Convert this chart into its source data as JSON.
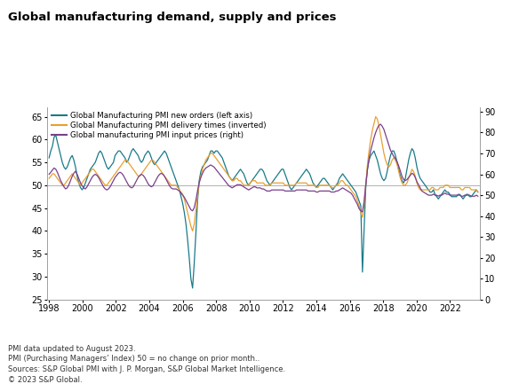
{
  "title": "Global manufacturing demand, supply and prices",
  "legend_labels": [
    "Global Manufacturing PMI new orders (left axis)",
    "Global Manufacturing PMI delivery times (inverted)",
    "Global manufacturing PMI input prices (right)"
  ],
  "line_colors": [
    "#1a7a8a",
    "#e8a030",
    "#7b3f8c"
  ],
  "ylim_left": [
    25,
    67
  ],
  "ylim_right": [
    0,
    92
  ],
  "yticks_left": [
    25,
    30,
    35,
    40,
    45,
    50,
    55,
    60,
    65
  ],
  "yticks_right": [
    0,
    10,
    20,
    30,
    40,
    50,
    60,
    70,
    80,
    90
  ],
  "footnotes": [
    "PMI data updated to August 2023.",
    "PMI (Purchasing Managers’ Index) 50 = no change on prior month..",
    "Sources: S&P Global PMI with J. P. Morgan, S&P Global Market Intelligence.",
    "© 2023 S&P Global."
  ],
  "background_color": "#ffffff",
  "new_orders": [
    56.0,
    57.5,
    58.5,
    60.5,
    61.0,
    59.5,
    58.0,
    56.5,
    55.0,
    54.0,
    53.5,
    54.0,
    55.0,
    56.0,
    56.5,
    55.5,
    54.0,
    52.0,
    50.5,
    49.5,
    49.0,
    49.5,
    50.5,
    51.5,
    52.5,
    53.5,
    54.0,
    54.5,
    55.0,
    56.0,
    57.0,
    57.5,
    57.0,
    56.0,
    55.0,
    54.0,
    53.5,
    54.0,
    54.5,
    55.0,
    56.5,
    57.0,
    57.5,
    57.5,
    57.0,
    56.5,
    56.0,
    55.0,
    55.5,
    56.5,
    57.5,
    58.0,
    57.5,
    57.0,
    56.5,
    55.5,
    55.0,
    55.5,
    56.5,
    57.0,
    57.5,
    57.0,
    56.0,
    55.0,
    54.5,
    55.0,
    55.5,
    56.0,
    56.5,
    57.0,
    57.5,
    57.0,
    56.0,
    55.0,
    54.0,
    53.0,
    52.0,
    51.0,
    50.0,
    49.0,
    47.5,
    46.0,
    44.0,
    41.5,
    38.0,
    34.0,
    29.5,
    27.5,
    33.0,
    39.5,
    46.5,
    51.0,
    53.0,
    54.0,
    54.5,
    55.0,
    55.5,
    56.5,
    57.5,
    57.5,
    57.0,
    57.5,
    57.5,
    57.0,
    56.5,
    56.0,
    55.0,
    54.0,
    53.0,
    52.0,
    51.5,
    51.0,
    51.5,
    52.0,
    52.5,
    53.0,
    53.5,
    53.0,
    52.5,
    51.5,
    50.5,
    50.0,
    50.5,
    51.0,
    51.5,
    52.0,
    52.5,
    53.0,
    53.5,
    53.5,
    53.0,
    52.0,
    51.0,
    50.5,
    50.0,
    50.5,
    51.0,
    51.5,
    52.0,
    52.5,
    53.0,
    53.5,
    53.5,
    52.5,
    51.5,
    50.5,
    49.5,
    49.0,
    49.5,
    50.0,
    50.5,
    51.0,
    51.5,
    52.0,
    52.5,
    53.0,
    53.5,
    53.0,
    52.5,
    51.5,
    50.5,
    50.0,
    49.5,
    50.0,
    50.5,
    51.0,
    51.5,
    51.5,
    51.0,
    50.5,
    50.0,
    49.5,
    49.0,
    49.5,
    50.0,
    50.5,
    51.5,
    52.0,
    52.5,
    52.0,
    51.5,
    51.0,
    50.5,
    50.0,
    49.5,
    49.0,
    48.5,
    47.5,
    46.5,
    45.5,
    31.0,
    40.5,
    49.5,
    53.5,
    55.5,
    56.5,
    57.0,
    57.5,
    56.5,
    55.5,
    54.0,
    52.5,
    51.5,
    51.0,
    51.5,
    53.0,
    55.0,
    56.5,
    57.5,
    57.5,
    56.5,
    55.0,
    53.5,
    52.0,
    51.0,
    50.5,
    51.5,
    53.5,
    55.5,
    57.0,
    58.0,
    57.5,
    56.0,
    54.0,
    52.5,
    51.5,
    51.0,
    50.5,
    50.0,
    49.5,
    49.0,
    48.5,
    48.5,
    49.0,
    48.0,
    47.5,
    47.0,
    47.5,
    48.0,
    48.5,
    49.0,
    48.5,
    48.5,
    48.0,
    47.5,
    47.5,
    47.5,
    47.5,
    48.0,
    48.0,
    47.5,
    47.0,
    47.5,
    48.0,
    48.0,
    47.5,
    47.5,
    48.0,
    48.5,
    49.0,
    48.5
  ],
  "delivery_times": [
    51.5,
    52.0,
    52.5,
    52.5,
    52.0,
    51.5,
    51.0,
    50.5,
    50.0,
    50.0,
    50.5,
    51.0,
    51.5,
    52.0,
    52.5,
    52.0,
    51.5,
    51.0,
    50.5,
    50.0,
    50.5,
    51.0,
    51.5,
    52.0,
    52.5,
    53.0,
    53.5,
    53.5,
    53.0,
    52.5,
    52.0,
    51.5,
    51.0,
    50.5,
    50.0,
    50.0,
    50.5,
    51.0,
    51.5,
    52.0,
    52.5,
    53.0,
    53.5,
    54.0,
    54.5,
    55.0,
    55.5,
    55.5,
    55.0,
    54.5,
    54.0,
    53.5,
    53.0,
    52.5,
    52.0,
    52.0,
    52.5,
    53.0,
    53.5,
    54.0,
    54.5,
    55.0,
    55.5,
    55.5,
    55.0,
    54.5,
    54.0,
    53.5,
    53.0,
    52.5,
    52.0,
    51.5,
    51.0,
    50.5,
    50.0,
    50.0,
    50.0,
    50.0,
    49.5,
    49.0,
    48.5,
    48.0,
    47.0,
    45.5,
    44.0,
    42.5,
    41.0,
    40.0,
    41.5,
    44.5,
    47.5,
    50.5,
    52.0,
    53.5,
    54.5,
    55.5,
    56.0,
    56.5,
    57.0,
    57.0,
    56.5,
    56.0,
    55.5,
    55.0,
    54.5,
    54.0,
    53.5,
    53.0,
    52.5,
    52.0,
    51.5,
    51.0,
    51.0,
    51.5,
    51.5,
    51.0,
    51.0,
    50.5,
    50.0,
    50.0,
    50.0,
    50.0,
    50.5,
    51.0,
    51.0,
    51.0,
    50.5,
    50.5,
    50.5,
    50.5,
    50.5,
    50.0,
    50.0,
    50.0,
    50.0,
    50.5,
    50.5,
    50.5,
    50.5,
    50.5,
    50.5,
    50.5,
    50.5,
    50.0,
    50.0,
    50.0,
    50.0,
    50.0,
    50.0,
    50.0,
    50.5,
    50.5,
    50.5,
    50.5,
    50.5,
    50.5,
    50.5,
    50.0,
    50.0,
    50.0,
    50.0,
    50.0,
    49.5,
    49.5,
    50.0,
    50.0,
    50.0,
    50.0,
    50.0,
    50.0,
    50.0,
    49.5,
    49.5,
    49.5,
    50.0,
    50.0,
    50.5,
    51.0,
    51.0,
    50.5,
    50.0,
    50.0,
    49.5,
    49.0,
    48.5,
    48.0,
    47.5,
    46.5,
    45.5,
    44.0,
    43.0,
    46.0,
    50.0,
    54.5,
    57.5,
    60.0,
    62.0,
    63.5,
    65.0,
    64.5,
    63.0,
    61.0,
    59.0,
    57.0,
    55.5,
    54.5,
    54.0,
    54.5,
    55.5,
    56.0,
    55.5,
    54.5,
    53.0,
    51.5,
    50.5,
    50.0,
    50.0,
    50.5,
    51.5,
    52.5,
    53.5,
    53.0,
    52.0,
    50.5,
    49.5,
    49.0,
    49.0,
    49.0,
    49.0,
    49.0,
    49.0,
    49.0,
    49.5,
    49.5,
    49.0,
    49.0,
    49.0,
    49.5,
    49.5,
    49.5,
    50.0,
    50.0,
    50.0,
    49.5,
    49.5,
    49.5,
    49.5,
    49.5,
    49.5,
    49.5,
    49.0,
    49.0,
    49.5,
    49.5,
    49.5,
    49.5,
    49.0,
    49.0,
    49.0,
    49.0,
    48.5
  ],
  "input_prices": [
    60.0,
    61.0,
    62.0,
    63.0,
    62.5,
    61.0,
    59.0,
    57.0,
    55.5,
    54.0,
    53.0,
    53.5,
    55.0,
    57.0,
    59.0,
    60.5,
    61.5,
    60.0,
    58.0,
    56.0,
    54.5,
    53.5,
    53.0,
    54.0,
    55.5,
    57.0,
    58.5,
    59.5,
    60.0,
    59.5,
    58.5,
    57.0,
    55.5,
    54.0,
    53.0,
    52.5,
    53.0,
    54.0,
    55.5,
    57.0,
    58.5,
    59.5,
    60.5,
    61.0,
    60.5,
    59.5,
    58.0,
    56.5,
    55.0,
    54.0,
    53.5,
    54.0,
    55.5,
    57.0,
    58.5,
    59.5,
    60.0,
    59.5,
    58.5,
    57.0,
    55.5,
    54.5,
    54.0,
    54.5,
    56.0,
    57.5,
    59.0,
    60.0,
    60.5,
    60.0,
    59.0,
    57.5,
    56.0,
    54.5,
    53.5,
    53.0,
    53.0,
    53.0,
    52.5,
    52.0,
    51.0,
    50.0,
    49.0,
    47.5,
    46.0,
    44.5,
    43.0,
    42.5,
    44.0,
    47.5,
    52.0,
    56.0,
    58.5,
    60.5,
    62.0,
    63.0,
    63.5,
    64.0,
    64.5,
    64.0,
    63.5,
    62.5,
    61.5,
    60.5,
    59.5,
    58.5,
    57.5,
    56.5,
    55.5,
    54.5,
    54.0,
    53.5,
    54.0,
    54.5,
    55.0,
    55.0,
    55.0,
    54.5,
    54.0,
    53.5,
    53.0,
    52.5,
    53.0,
    53.5,
    54.0,
    54.0,
    53.5,
    53.5,
    53.5,
    53.0,
    53.0,
    52.5,
    52.0,
    52.0,
    52.0,
    52.5,
    52.5,
    52.5,
    52.5,
    52.5,
    52.5,
    52.5,
    52.5,
    52.0,
    52.0,
    52.0,
    52.0,
    52.0,
    52.0,
    52.0,
    52.5,
    52.5,
    52.5,
    52.5,
    52.5,
    52.5,
    52.5,
    52.0,
    52.0,
    52.0,
    52.0,
    52.0,
    51.5,
    51.5,
    52.0,
    52.0,
    52.0,
    52.0,
    52.0,
    52.0,
    52.0,
    51.5,
    51.5,
    51.5,
    52.0,
    52.0,
    52.5,
    53.0,
    53.5,
    53.0,
    52.5,
    52.0,
    51.5,
    51.0,
    50.0,
    48.5,
    47.0,
    45.5,
    43.5,
    42.5,
    42.0,
    47.0,
    55.0,
    62.0,
    67.5,
    71.5,
    74.5,
    77.5,
    80.0,
    82.0,
    83.5,
    84.0,
    83.0,
    81.5,
    79.0,
    76.5,
    74.0,
    71.5,
    70.0,
    68.5,
    67.5,
    66.0,
    64.0,
    61.5,
    59.0,
    57.5,
    57.0,
    57.5,
    58.5,
    59.5,
    60.5,
    60.0,
    58.5,
    56.5,
    55.0,
    53.5,
    52.0,
    51.5,
    51.0,
    50.5,
    50.0,
    50.0,
    50.0,
    50.5,
    50.0,
    50.0,
    49.5,
    50.0,
    50.0,
    50.5,
    51.0,
    50.5,
    50.5,
    50.0,
    50.0,
    50.0,
    50.0,
    50.0,
    50.0,
    50.0,
    49.5,
    49.5,
    50.0,
    50.0,
    50.0,
    50.0,
    49.5,
    49.5,
    49.5,
    50.0,
    49.5
  ],
  "x_start_year": 1998.0,
  "x_end_year": 2023.67,
  "xticks": [
    1998,
    2000,
    2002,
    2004,
    2006,
    2008,
    2010,
    2012,
    2014,
    2016,
    2018,
    2020,
    2022
  ]
}
